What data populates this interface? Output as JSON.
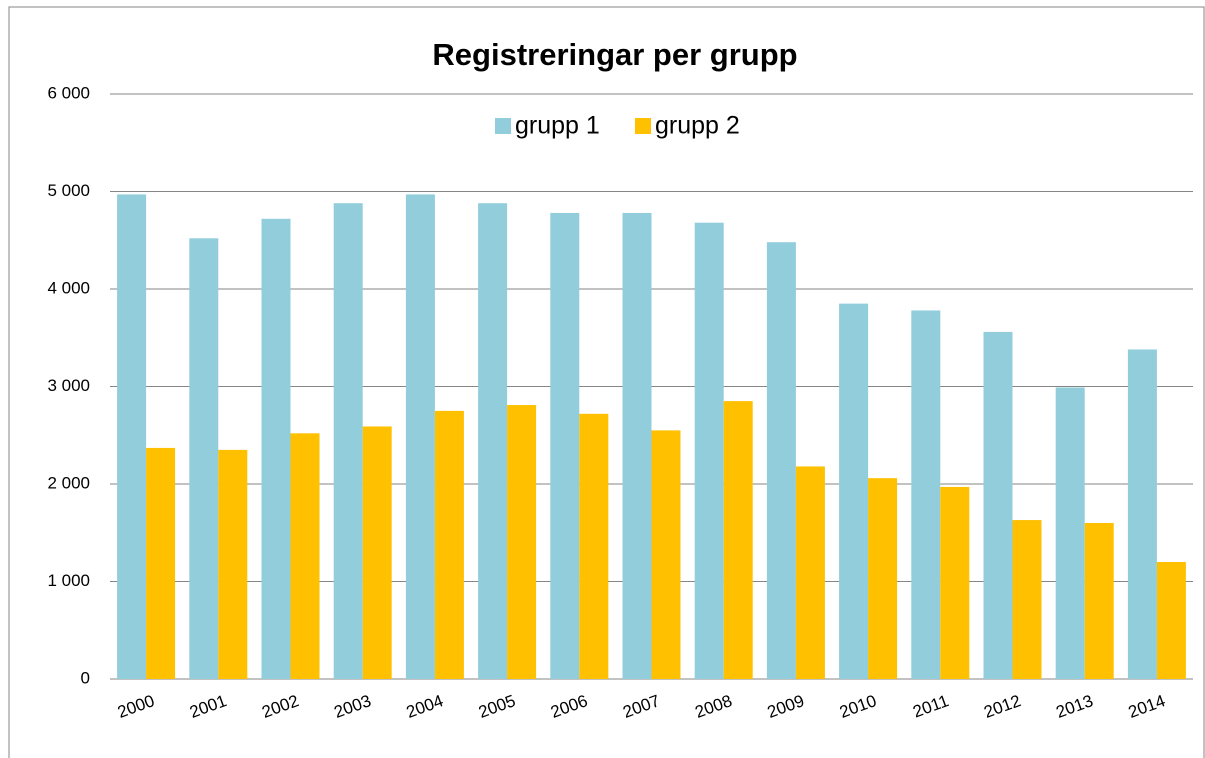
{
  "chart_data": {
    "type": "bar",
    "title": "Registreringar per grupp",
    "categories": [
      "2000",
      "2001",
      "2002",
      "2003",
      "2004",
      "2005",
      "2006",
      "2007",
      "2008",
      "2009",
      "2010",
      "2011",
      "2012",
      "2013",
      "2014"
    ],
    "series": [
      {
        "name": "grupp 1",
        "color": "#92cddc",
        "values": [
          4970,
          4520,
          4720,
          4880,
          4970,
          4880,
          4780,
          4780,
          4680,
          4480,
          3850,
          3780,
          3560,
          2990,
          3380
        ]
      },
      {
        "name": "grupp 2",
        "color": "#ffc000",
        "values": [
          2370,
          2350,
          2520,
          2590,
          2750,
          2810,
          2720,
          2550,
          2850,
          2180,
          2060,
          1970,
          1630,
          1600,
          1200
        ]
      }
    ],
    "ylim": [
      0,
      6000
    ],
    "yticks": [
      0,
      {
        "value": 1000,
        "label": "1 000"
      },
      {
        "value": 2000,
        "label": "2 000"
      },
      {
        "value": 3000,
        "label": "3 000"
      },
      {
        "value": 4000,
        "label": "4 000"
      },
      {
        "value": 5000,
        "label": "5 000"
      },
      {
        "value": 6000,
        "label": "6 000"
      }
    ],
    "grid": true,
    "legend": "top"
  }
}
